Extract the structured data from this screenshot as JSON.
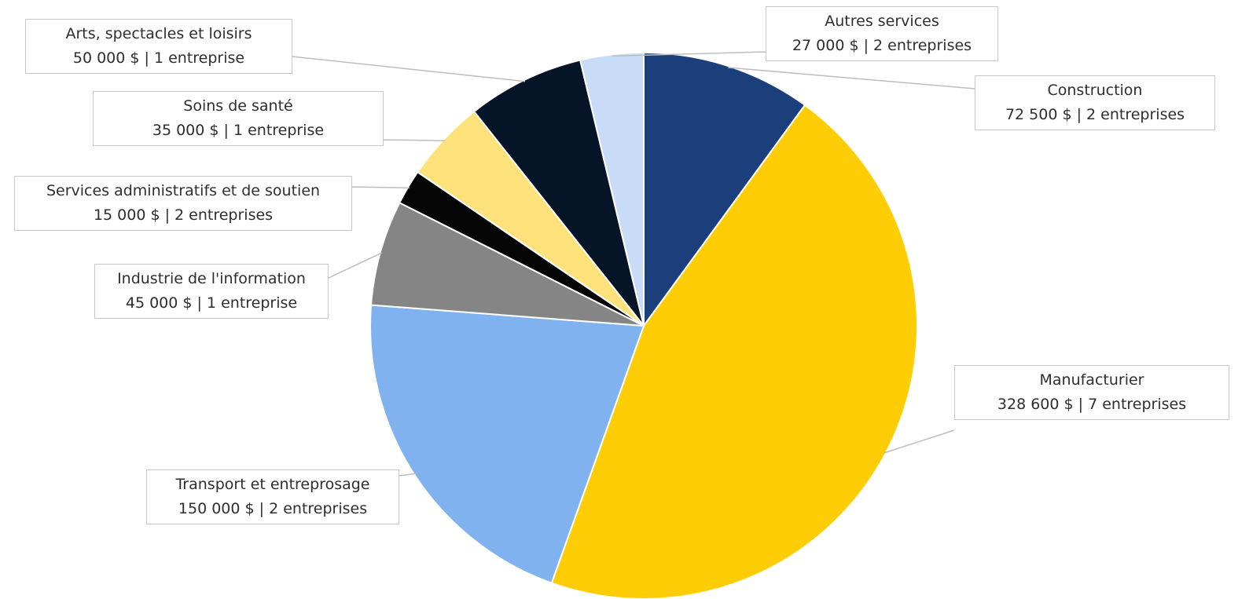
{
  "chart_data": {
    "type": "pie",
    "start_angle_deg": 0,
    "direction": "clockwise",
    "slices": [
      {
        "label": "Construction",
        "value": 72500,
        "value_text": "72 500 $",
        "count_text": "2 entreprises",
        "color": "#1b3f7a"
      },
      {
        "label": "Manufacturier",
        "value": 328600,
        "value_text": "328 600 $",
        "count_text": "7 entreprises",
        "color": "#fecd05"
      },
      {
        "label": "Transport et entreprosage",
        "value": 150000,
        "value_text": "150 000 $",
        "count_text": "2 entreprises",
        "color": "#7fb2ef"
      },
      {
        "label": "Industrie de l'information",
        "value": 45000,
        "value_text": "45 000 $",
        "count_text": "1 entreprise",
        "color": "#858585"
      },
      {
        "label": "Services administratifs et de soutien",
        "value": 15000,
        "value_text": "15 000 $",
        "count_text": "2 entreprises",
        "color": "#050505"
      },
      {
        "label": "Soins de santé",
        "value": 35000,
        "value_text": "35 000 $",
        "count_text": "1 entreprise",
        "color": "#fde17a"
      },
      {
        "label": "Arts, spectacles et loisirs",
        "value": 50000,
        "value_text": "50 000 $",
        "count_text": "1 entreprise",
        "color": "#061428"
      },
      {
        "label": "Autres services",
        "value": 27000,
        "value_text": "27 000 $",
        "count_text": "2 entreprises",
        "color": "#c8dcf7"
      }
    ]
  }
}
